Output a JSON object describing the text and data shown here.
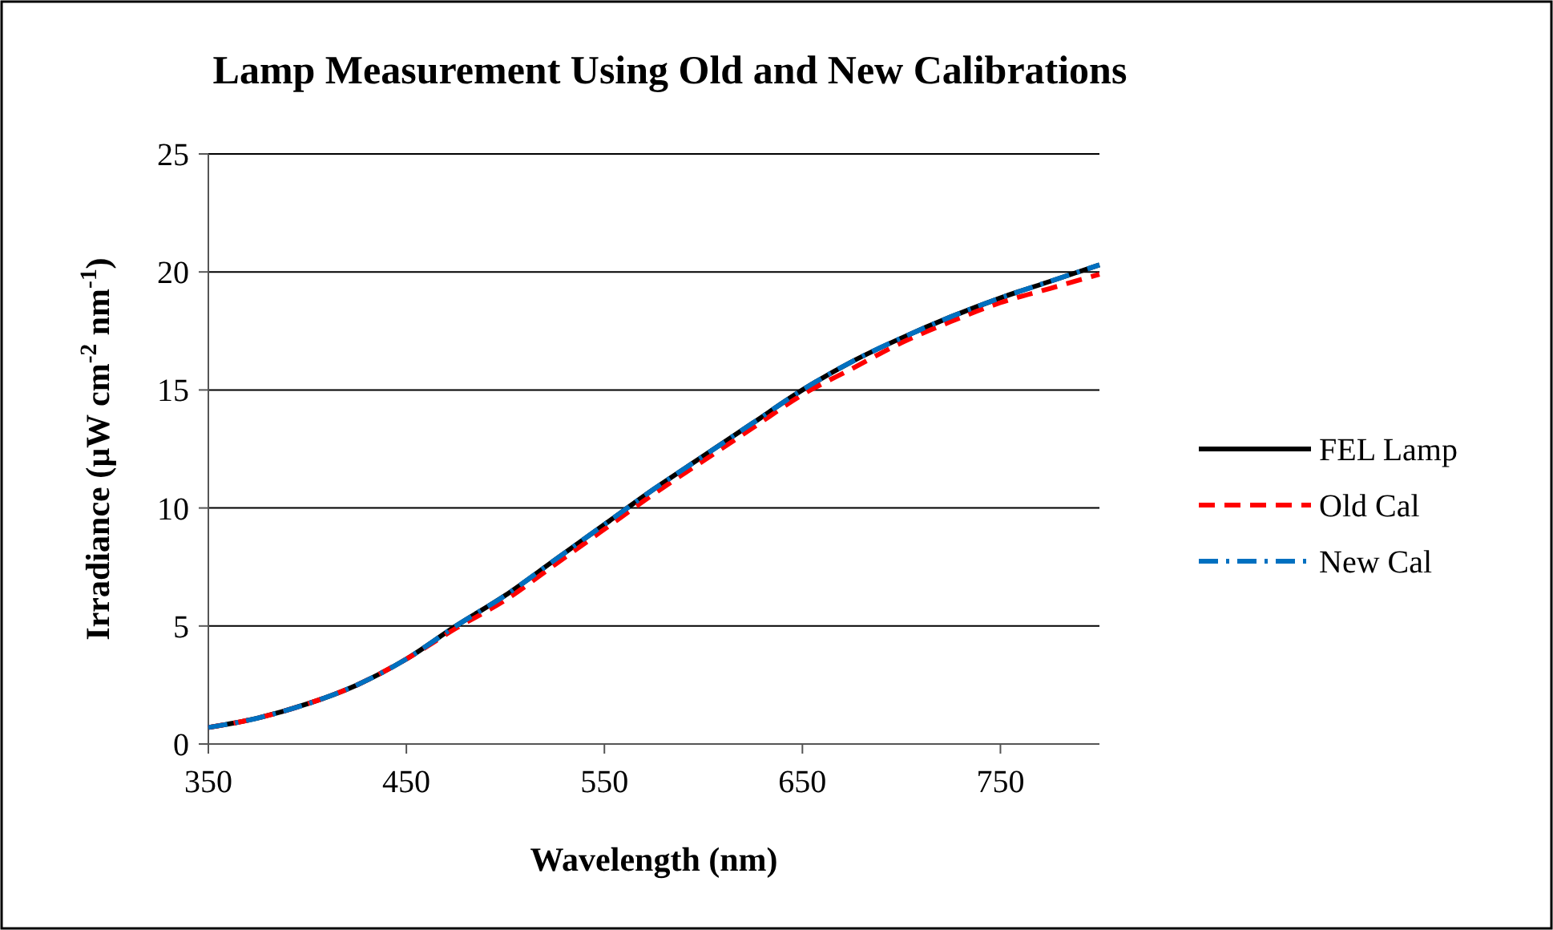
{
  "chart_data": {
    "type": "line",
    "title": "Lamp Measurement Using Old and New Calibrations",
    "xlabel": "Wavelength (nm)",
    "ylabel": "Irradiance  (µW cm$^{-2}$ nm$^{-1}$)",
    "x": [
      350,
      375,
      400,
      425,
      450,
      475,
      500,
      525,
      550,
      575,
      600,
      625,
      650,
      675,
      700,
      725,
      750,
      775,
      800
    ],
    "series": [
      {
        "name": "FEL Lamp",
        "color": "#000000",
        "line_style": "solid",
        "values": [
          0.7,
          1.1,
          1.7,
          2.5,
          3.6,
          5.0,
          6.3,
          7.8,
          9.3,
          10.8,
          12.2,
          13.6,
          15.0,
          16.2,
          17.2,
          18.1,
          18.9,
          19.6,
          20.3
        ]
      },
      {
        "name": "Old Cal",
        "color": "#ff0000",
        "line_style": "dashed",
        "values": [
          0.7,
          1.1,
          1.7,
          2.5,
          3.6,
          4.9,
          6.1,
          7.6,
          9.1,
          10.6,
          12.0,
          13.4,
          14.8,
          15.9,
          17.0,
          17.9,
          18.7,
          19.3,
          19.9
        ]
      },
      {
        "name": "New Cal",
        "color": "#0070c0",
        "line_style": "dashdot",
        "values": [
          0.7,
          1.1,
          1.7,
          2.5,
          3.6,
          5.0,
          6.3,
          7.8,
          9.3,
          10.8,
          12.2,
          13.6,
          15.0,
          16.2,
          17.2,
          18.1,
          18.9,
          19.6,
          20.3
        ]
      }
    ],
    "xlim": [
      350,
      800
    ],
    "xticks": [
      350,
      450,
      550,
      650,
      750
    ],
    "ylim": [
      0,
      25
    ],
    "yticks": [
      0,
      5,
      10,
      15,
      20,
      25
    ],
    "grid": "y",
    "legend": "right",
    "marker": "none"
  }
}
